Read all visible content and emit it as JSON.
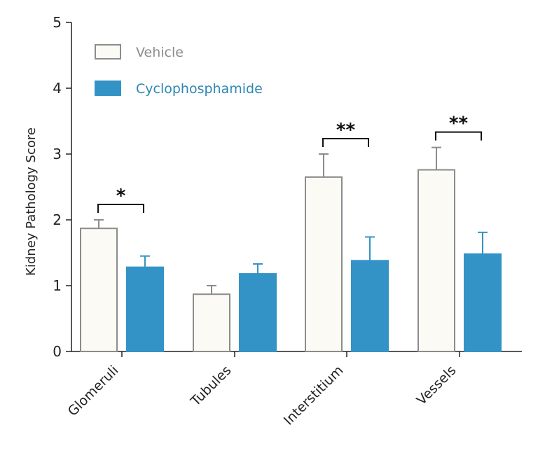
{
  "chart_data": {
    "type": "bar",
    "title": "",
    "xlabel": "",
    "ylabel": "Kidney Pathology Score",
    "ylim": [
      0,
      5
    ],
    "yticks": [
      0,
      1,
      2,
      3,
      4,
      5
    ],
    "categories": [
      "Glomeruli",
      "Tubules",
      "Interstitium",
      "Vessels"
    ],
    "series": [
      {
        "name": "Vehicle",
        "values": [
          1.87,
          0.87,
          2.65,
          2.76
        ],
        "errors": [
          0.13,
          0.13,
          0.35,
          0.34
        ],
        "color": "#fbfaf5",
        "stroke": "#8c8c8c",
        "text_color": "#8c8c8c"
      },
      {
        "name": "Cyclophosphamide",
        "values": [
          1.28,
          1.18,
          1.38,
          1.48
        ],
        "errors": [
          0.17,
          0.15,
          0.36,
          0.33
        ],
        "color": "#3493c6",
        "stroke": "#3493c6",
        "text_color": "#2e87b3"
      }
    ],
    "significance": [
      {
        "category": "Glomeruli",
        "label": "*"
      },
      {
        "category": "Interstitium",
        "label": "**"
      },
      {
        "category": "Vessels",
        "label": "**"
      }
    ],
    "grid": false,
    "legend_position": "top-left"
  }
}
